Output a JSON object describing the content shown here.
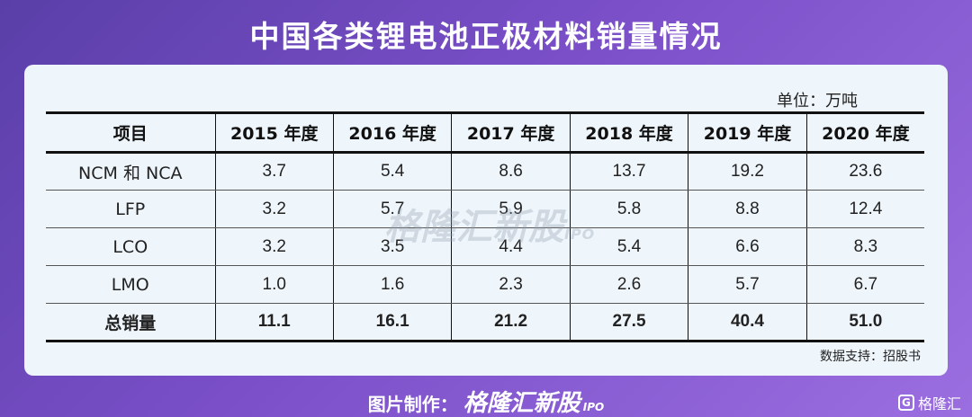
{
  "title": "中国各类锂电池正极材料销量情况",
  "unit": "单位：万吨",
  "source": "数据支持：招股书",
  "watermark": {
    "brand": "格隆汇新股",
    "tag": "IPO"
  },
  "footer": {
    "prefix": "图片制作：",
    "brand": "格隆汇新股",
    "tag": "IPO"
  },
  "corner_logo": {
    "mark": "G",
    "text": "格隆汇"
  },
  "chart_data": {
    "type": "table",
    "title": "中国各类锂电池正极材料销量情况",
    "unit": "万吨",
    "columns": [
      "项目",
      "2015 年度",
      "2016 年度",
      "2017 年度",
      "2018 年度",
      "2019 年度",
      "2020 年度"
    ],
    "rows": [
      {
        "label": "NCM 和 NCA",
        "values": [
          "3.7",
          "5.4",
          "8.6",
          "13.7",
          "19.2",
          "23.6"
        ]
      },
      {
        "label": "LFP",
        "values": [
          "3.2",
          "5.7",
          "5.9",
          "5.8",
          "8.8",
          "12.4"
        ]
      },
      {
        "label": "LCO",
        "values": [
          "3.2",
          "3.5",
          "4.4",
          "5.4",
          "6.6",
          "8.3"
        ]
      },
      {
        "label": "LMO",
        "values": [
          "1.0",
          "1.6",
          "2.3",
          "2.6",
          "5.7",
          "6.7"
        ]
      },
      {
        "label": "总销量",
        "values": [
          "11.1",
          "16.1",
          "21.2",
          "27.5",
          "40.4",
          "51.0"
        ]
      }
    ]
  }
}
